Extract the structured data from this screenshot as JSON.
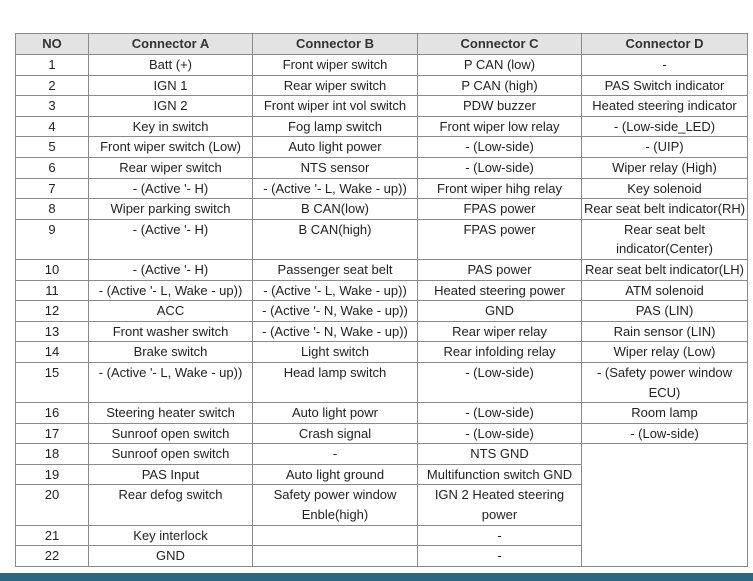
{
  "table": {
    "headers": [
      "NO",
      "Connector A",
      "Connector  B",
      "Connector  C",
      "Connector  D"
    ],
    "rows": [
      [
        "1",
        "Batt (+)",
        "Front wiper switch",
        "P CAN (low)",
        "-"
      ],
      [
        "2",
        "IGN 1",
        "Rear wiper switch",
        "P CAN (high)",
        "PAS Switch indicator"
      ],
      [
        "3",
        "IGN 2",
        "Front wiper int vol switch",
        "PDW buzzer",
        "Heated steering indicator"
      ],
      [
        "4",
        "Key in switch",
        "Fog lamp switch",
        "Front wiper low relay",
        "- (Low-side_LED)"
      ],
      [
        "5",
        "Front wiper switch (Low)",
        "Auto light power",
        "- (Low-side)",
        "- (UIP)"
      ],
      [
        "6",
        "Rear wiper switch",
        "NTS sensor",
        "- (Low-side)",
        "Wiper relay (High)"
      ],
      [
        "7",
        "- (Active '- H)",
        "- (Active '- L, Wake - up))",
        "Front wiper hihg relay",
        "Key solenoid"
      ],
      [
        "8",
        "Wiper parking switch",
        "B CAN(low)",
        "FPAS power",
        "Rear seat belt indicator(RH)"
      ],
      [
        "9",
        "- (Active '- H)",
        "B CAN(high)",
        "FPAS power",
        "Rear seat belt indicator(Center)"
      ],
      [
        "10",
        "- (Active '- H)",
        "Passenger seat belt",
        "PAS power",
        "Rear seat belt indicator(LH)"
      ],
      [
        "11",
        "- (Active '- L, Wake - up))",
        "- (Active '- L, Wake - up))",
        "Heated steering power",
        "ATM solenoid"
      ],
      [
        "12",
        "ACC",
        "- (Active '- N, Wake - up))",
        "GND",
        "PAS (LIN)"
      ],
      [
        "13",
        "Front washer switch",
        "- (Active '- N, Wake - up))",
        "Rear wiper relay",
        "Rain sensor (LIN)"
      ],
      [
        "14",
        "Brake switch",
        "Light switch",
        "Rear infolding relay",
        "Wiper relay (Low)"
      ],
      [
        "15",
        "- (Active '- L, Wake - up))",
        "Head lamp switch",
        "- (Low-side)",
        "- (Safety power window ECU)"
      ],
      [
        "16",
        "Steering heater switch",
        "Auto light powr",
        "- (Low-side)",
        "Room lamp"
      ],
      [
        "17",
        "Sunroof open switch",
        "Crash signal",
        "- (Low-side)",
        "- (Low-side)"
      ],
      [
        "18",
        "Sunroof open switch",
        "-",
        "NTS GND",
        ""
      ],
      [
        "19",
        "PAS Input",
        "Auto light ground",
        "Multifunction switch GND"
      ],
      [
        "20",
        "Rear defog switch",
        "Safety power window Enble(high)",
        "IGN 2 Heated steering power"
      ],
      [
        "21",
        "Key interlock",
        "",
        "-"
      ],
      [
        "22",
        "GND",
        "",
        "-"
      ]
    ]
  },
  "colors": {
    "header_bg": "#e3e3e3",
    "border": "#8a8a8a",
    "footer_bar": "#2b6780"
  }
}
